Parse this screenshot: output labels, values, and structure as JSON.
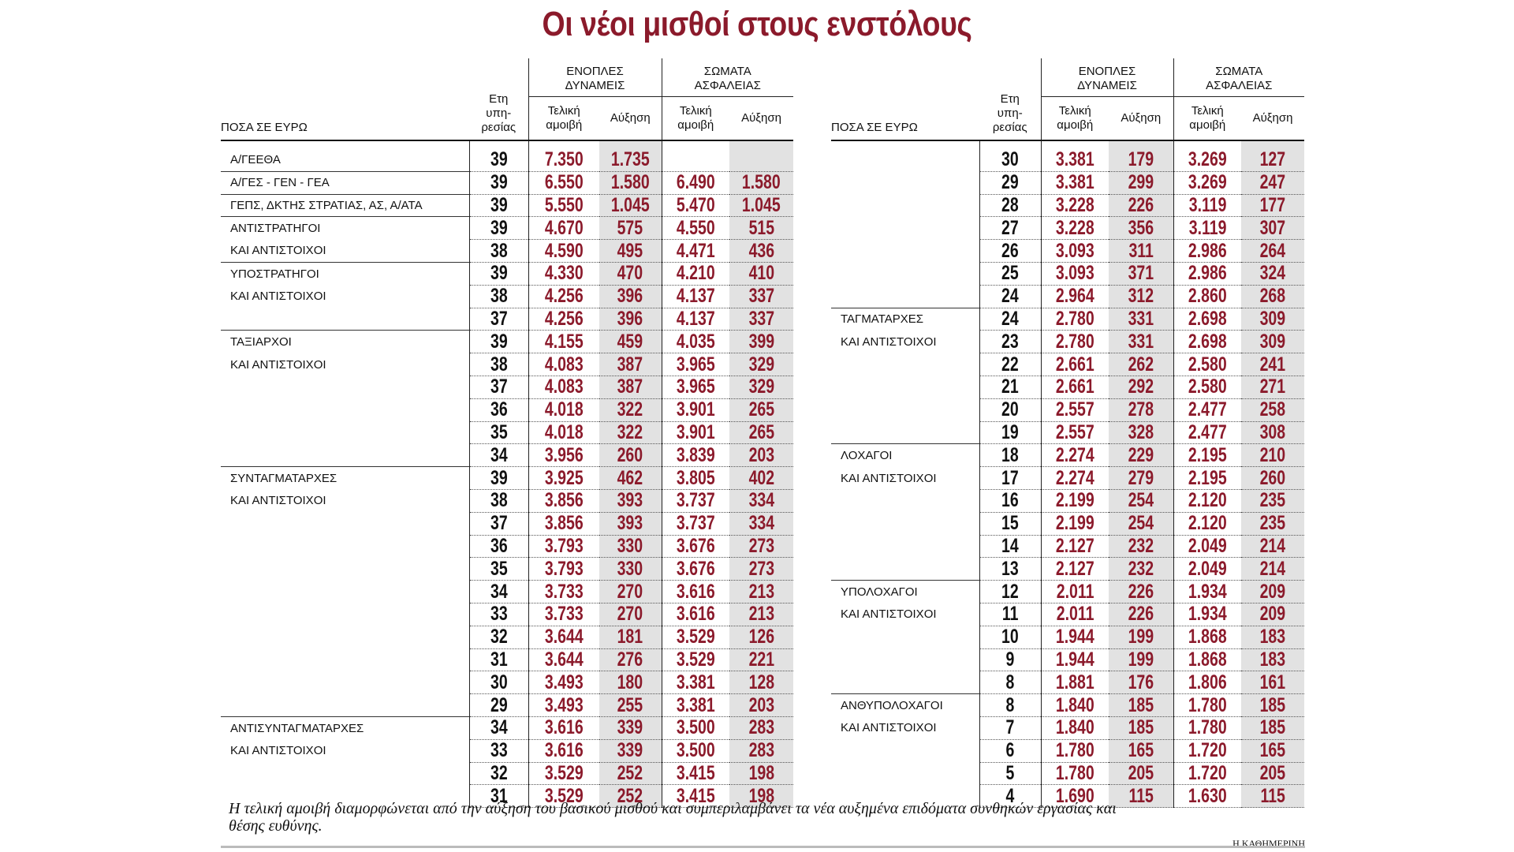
{
  "title": "Οι νέοι μισθοί στους ενστόλους",
  "header": {
    "amounts": "ΠΟΣΑ ΣΕ ΕΥΡΩ",
    "years": [
      "Ετη",
      "υπη-",
      "ρεσίας"
    ],
    "armed_forces": [
      "ΕΝΟΠΛΕΣ",
      "ΔΥΝΑΜΕΙΣ"
    ],
    "security_forces": [
      "ΣΩΜΑΤΑ",
      "ΑΣΦΑΛΕΙΑΣ"
    ],
    "total_pay": [
      "Τελική",
      "αμοιβή"
    ],
    "raise": "Αύξηση"
  },
  "tables": {
    "left": {
      "rows": [
        [
          "Α/ΓΕΕΘΑ",
          39,
          "7.350",
          "1.735",
          null,
          null
        ],
        [
          "Α/ΓΕΣ - ΓΕΝ - ΓΕΑ",
          39,
          "6.550",
          "1.580",
          "6.490",
          "1.580"
        ],
        [
          "ΓΕΠΣ, ΔΚΤΗΣ ΣΤΡΑΤΙΑΣ, ΑΣ, Α/ΑΤΑ",
          39,
          "5.550",
          "1.045",
          "5.470",
          "1.045"
        ],
        [
          "ΑΝΤΙΣΤΡΑΤΗΓΟΙ",
          39,
          "4.670",
          "575",
          "4.550",
          "515"
        ],
        [
          "ΚΑΙ ΑΝΤΙΣΤΟΙΧΟΙ",
          38,
          "4.590",
          "495",
          "4.471",
          "436"
        ],
        [
          "ΥΠΟΣΤΡΑΤΗΓΟΙ",
          39,
          "4.330",
          "470",
          "4.210",
          "410"
        ],
        [
          "ΚΑΙ ΑΝΤΙΣΤΟΙΧΟΙ",
          38,
          "4.256",
          "396",
          "4.137",
          "337"
        ],
        [
          null,
          37,
          "4.256",
          "396",
          "4.137",
          "337"
        ],
        [
          "ΤΑΞΙΑΡΧΟΙ",
          39,
          "4.155",
          "459",
          "4.035",
          "399"
        ],
        [
          "ΚΑΙ ΑΝΤΙΣΤΟΙΧΟΙ",
          38,
          "4.083",
          "387",
          "3.965",
          "329"
        ],
        [
          null,
          37,
          "4.083",
          "387",
          "3.965",
          "329"
        ],
        [
          null,
          36,
          "4.018",
          "322",
          "3.901",
          "265"
        ],
        [
          null,
          35,
          "4.018",
          "322",
          "3.901",
          "265"
        ],
        [
          null,
          34,
          "3.956",
          "260",
          "3.839",
          "203"
        ],
        [
          "ΣΥΝΤΑΓΜΑΤΑΡΧΕΣ",
          39,
          "3.925",
          "462",
          "3.805",
          "402"
        ],
        [
          "ΚΑΙ ΑΝΤΙΣΤΟΙΧΟΙ",
          38,
          "3.856",
          "393",
          "3.737",
          "334"
        ],
        [
          null,
          37,
          "3.856",
          "393",
          "3.737",
          "334"
        ],
        [
          null,
          36,
          "3.793",
          "330",
          "3.676",
          "273"
        ],
        [
          null,
          35,
          "3.793",
          "330",
          "3.676",
          "273"
        ],
        [
          null,
          34,
          "3.733",
          "270",
          "3.616",
          "213"
        ],
        [
          null,
          33,
          "3.733",
          "270",
          "3.616",
          "213"
        ],
        [
          null,
          32,
          "3.644",
          "181",
          "3.529",
          "126"
        ],
        [
          null,
          31,
          "3.644",
          "276",
          "3.529",
          "221"
        ],
        [
          null,
          30,
          "3.493",
          "180",
          "3.381",
          "128"
        ],
        [
          null,
          29,
          "3.493",
          "255",
          "3.381",
          "203"
        ],
        [
          "ΑΝΤΙΣΥΝΤΑΓΜΑΤΑΡΧΕΣ",
          34,
          "3.616",
          "339",
          "3.500",
          "283"
        ],
        [
          "ΚΑΙ ΑΝΤΙΣΤΟΙΧΟΙ",
          33,
          "3.616",
          "339",
          "3.500",
          "283"
        ],
        [
          null,
          32,
          "3.529",
          "252",
          "3.415",
          "198"
        ],
        [
          null,
          31,
          "3.529",
          "252",
          "3.415",
          "198"
        ]
      ]
    },
    "right": {
      "rows": [
        [
          null,
          30,
          "3.381",
          "179",
          "3.269",
          "127"
        ],
        [
          null,
          29,
          "3.381",
          "299",
          "3.269",
          "247"
        ],
        [
          null,
          28,
          "3.228",
          "226",
          "3.119",
          "177"
        ],
        [
          null,
          27,
          "3.228",
          "356",
          "3.119",
          "307"
        ],
        [
          null,
          26,
          "3.093",
          "311",
          "2.986",
          "264"
        ],
        [
          null,
          25,
          "3.093",
          "371",
          "2.986",
          "324"
        ],
        [
          null,
          24,
          "2.964",
          "312",
          "2.860",
          "268"
        ],
        [
          "ΤΑΓΜΑΤΑΡΧΕΣ",
          24,
          "2.780",
          "331",
          "2.698",
          "309"
        ],
        [
          "ΚΑΙ ΑΝΤΙΣΤΟΙΧΟΙ",
          23,
          "2.780",
          "331",
          "2.698",
          "309"
        ],
        [
          null,
          22,
          "2.661",
          "262",
          "2.580",
          "241"
        ],
        [
          null,
          21,
          "2.661",
          "292",
          "2.580",
          "271"
        ],
        [
          null,
          20,
          "2.557",
          "278",
          "2.477",
          "258"
        ],
        [
          null,
          19,
          "2.557",
          "328",
          "2.477",
          "308"
        ],
        [
          "ΛΟΧΑΓΟΙ",
          18,
          "2.274",
          "229",
          "2.195",
          "210"
        ],
        [
          "ΚΑΙ ΑΝΤΙΣΤΟΙΧΟΙ",
          17,
          "2.274",
          "279",
          "2.195",
          "260"
        ],
        [
          null,
          16,
          "2.199",
          "254",
          "2.120",
          "235"
        ],
        [
          null,
          15,
          "2.199",
          "254",
          "2.120",
          "235"
        ],
        [
          null,
          14,
          "2.127",
          "232",
          "2.049",
          "214"
        ],
        [
          null,
          13,
          "2.127",
          "232",
          "2.049",
          "214"
        ],
        [
          "ΥΠΟΛΟΧΑΓΟΙ",
          12,
          "2.011",
          "226",
          "1.934",
          "209"
        ],
        [
          "ΚΑΙ ΑΝΤΙΣΤΟΙΧΟΙ",
          11,
          "2.011",
          "226",
          "1.934",
          "209"
        ],
        [
          null,
          10,
          "1.944",
          "199",
          "1.868",
          "183"
        ],
        [
          null,
          9,
          "1.944",
          "199",
          "1.868",
          "183"
        ],
        [
          null,
          8,
          "1.881",
          "176",
          "1.806",
          "161"
        ],
        [
          "ΑΝΘΥΠΟΛΟΧΑΓΟΙ",
          8,
          "1.840",
          "185",
          "1.780",
          "185"
        ],
        [
          "ΚΑΙ ΑΝΤΙΣΤΟΙΧΟΙ",
          7,
          "1.840",
          "185",
          "1.780",
          "185"
        ],
        [
          null,
          6,
          "1.780",
          "165",
          "1.720",
          "165"
        ],
        [
          null,
          5,
          "1.780",
          "205",
          "1.720",
          "205"
        ],
        [
          null,
          4,
          "1.690",
          "115",
          "1.630",
          "115"
        ]
      ]
    }
  },
  "footnote": "Η τελική αμοιβή διαμορφώνεται από την αύξηση του βασικού μισθού και συμπεριλαμβάνει τα νέα αυξημένα επιδόματα συνθηκών εργασίας και θέσης ευθύνης.",
  "credit": "Η ΚΑΘΗΜΕΡΙΝΗ"
}
